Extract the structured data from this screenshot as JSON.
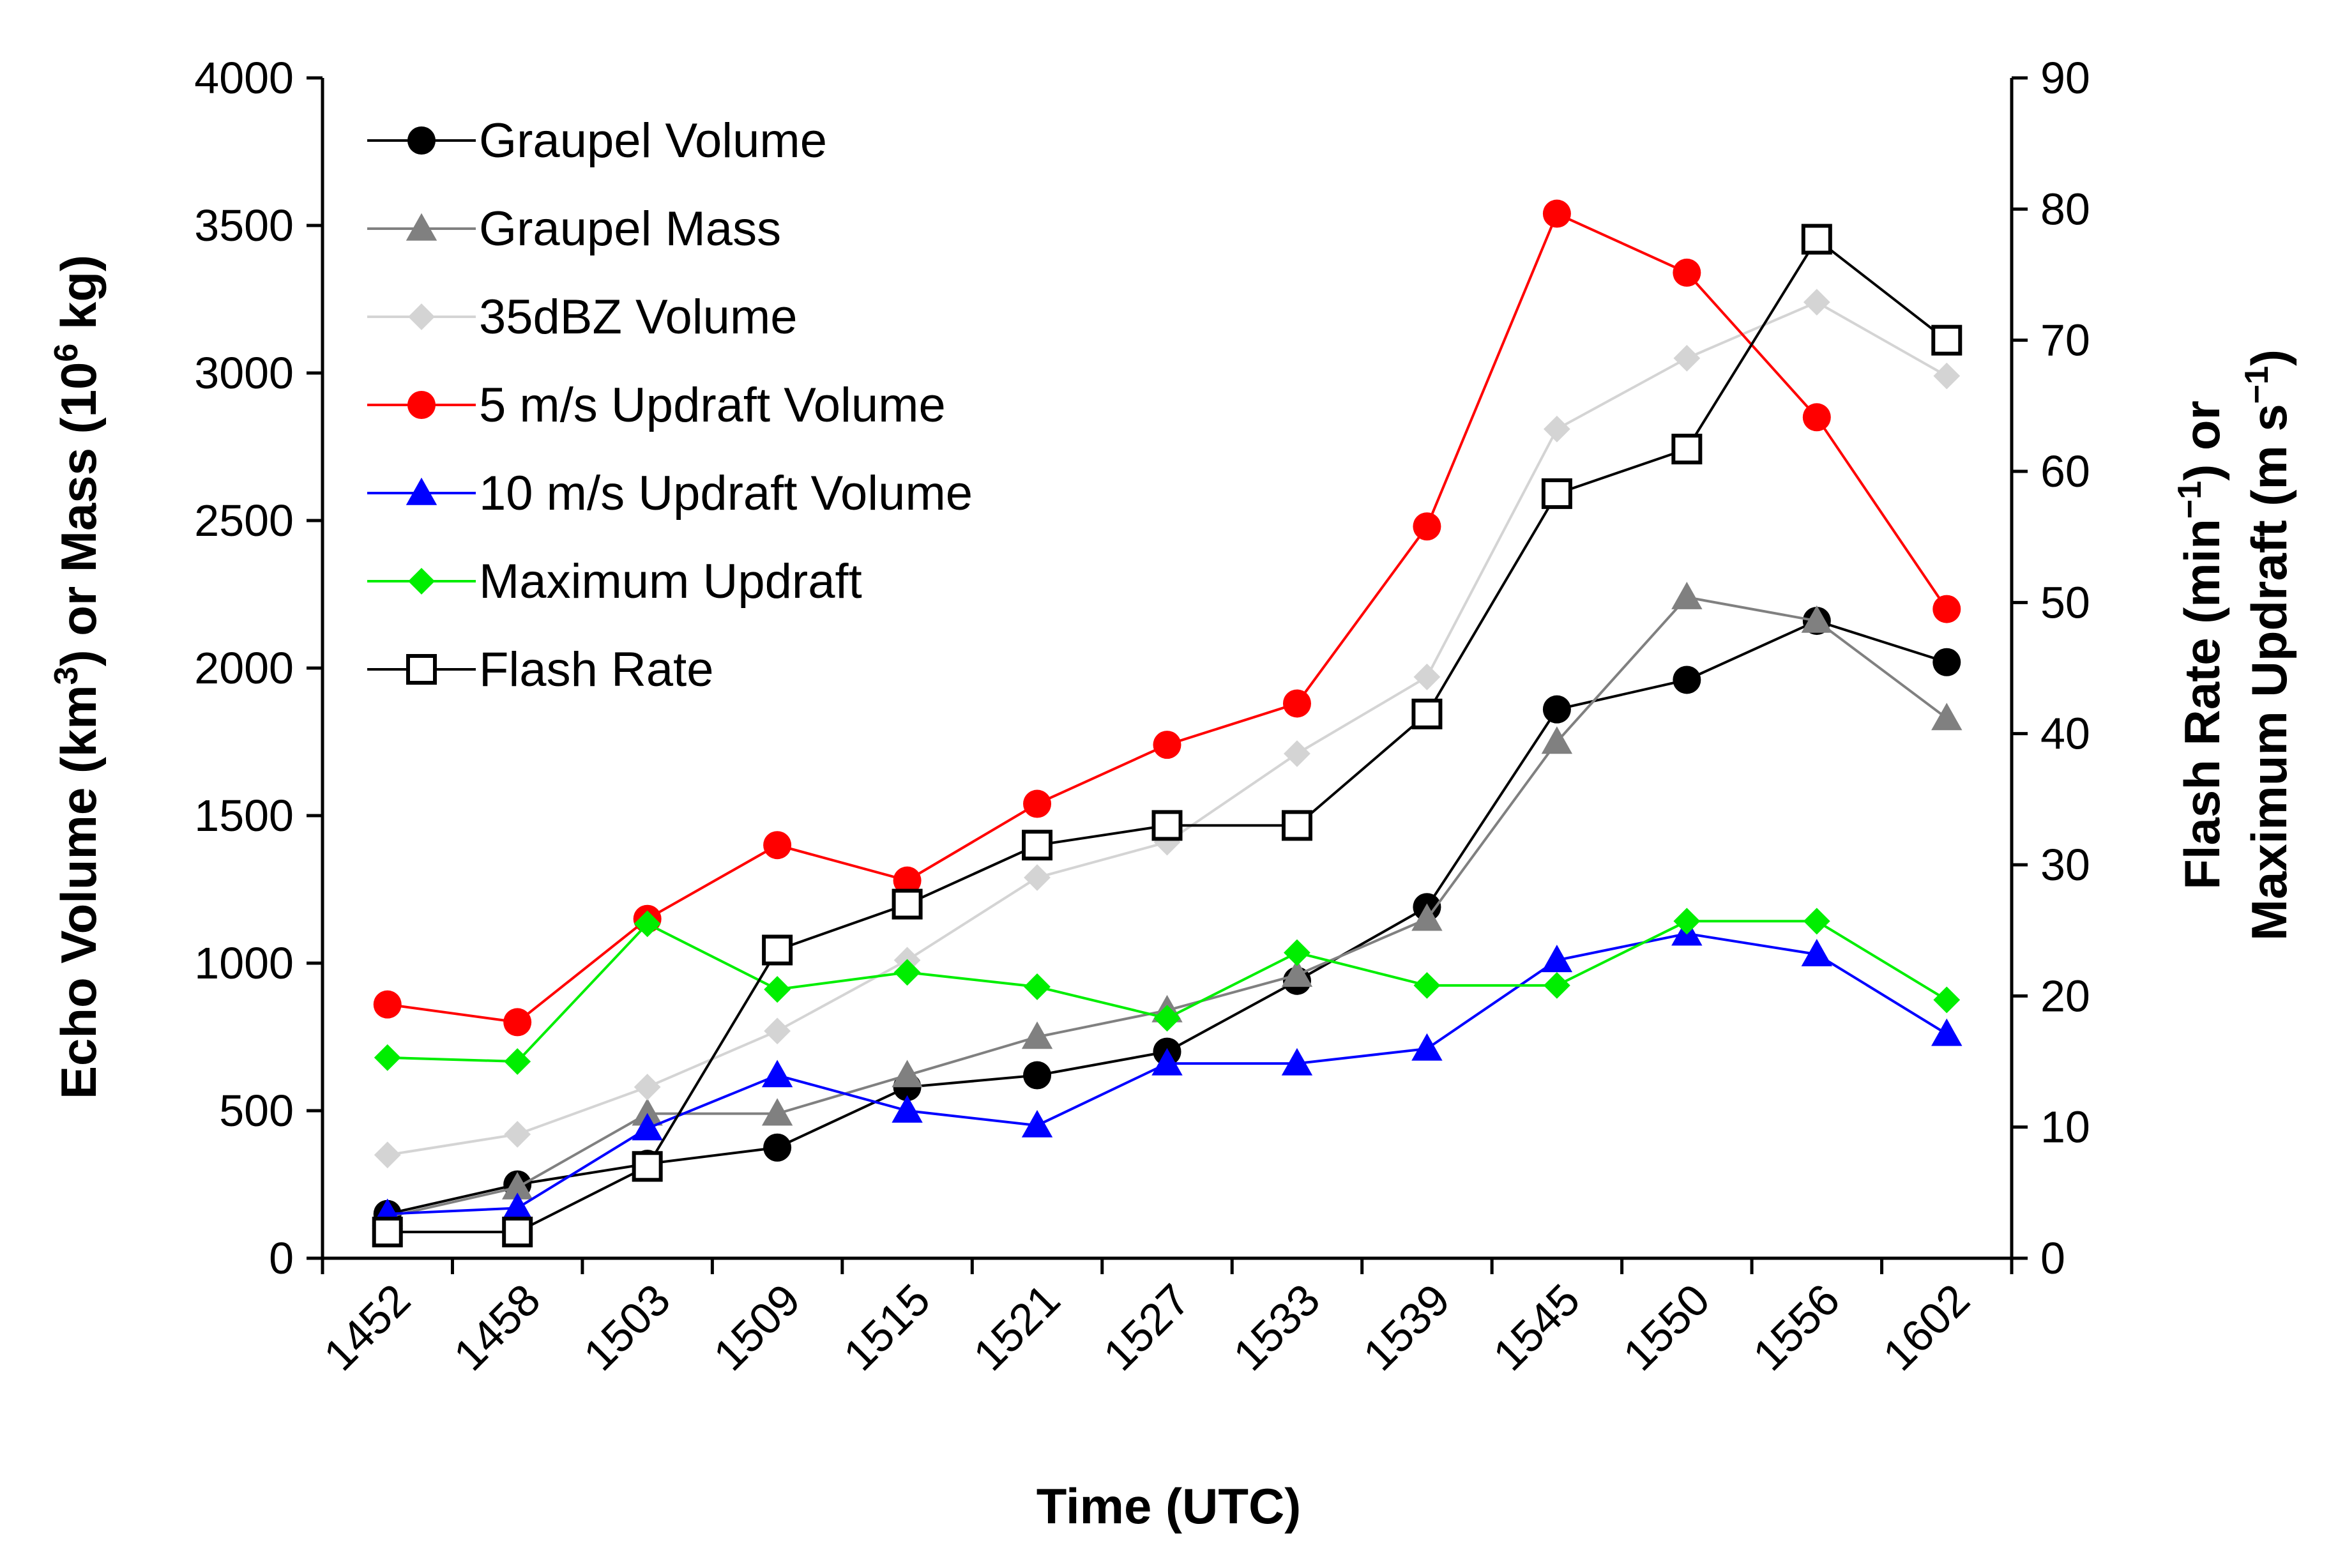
{
  "chart_data": {
    "type": "line",
    "xlabel": "Time (UTC)",
    "ylabel_left": {
      "parts": [
        "Echo Volume (km",
        "3",
        ") or Mass (10",
        "6",
        " kg)"
      ]
    },
    "ylabel_right": {
      "line1": [
        "Flash Rate (min",
        "−1",
        ") or"
      ],
      "line2": [
        "Maximum Updraft (m s",
        "−1",
        ")"
      ]
    },
    "categories": [
      "1452",
      "1458",
      "1503",
      "1509",
      "1515",
      "1521",
      "1527",
      "1533",
      "1539",
      "1545",
      "1550",
      "1556",
      "1602"
    ],
    "ylim_left": [
      0,
      4000
    ],
    "ylim_right": [
      0,
      90
    ],
    "yticks_left": [
      0,
      500,
      1000,
      1500,
      2000,
      2500,
      3000,
      3500,
      4000
    ],
    "yticks_right": [
      0,
      10,
      20,
      30,
      40,
      50,
      60,
      70,
      80,
      90
    ],
    "series": [
      {
        "name": "Graupel Volume",
        "axis": "left",
        "color": "#000000",
        "marker": "circle",
        "values": [
          150,
          250,
          320,
          375,
          580,
          620,
          700,
          940,
          1190,
          1860,
          1960,
          2160,
          2020
        ]
      },
      {
        "name": "Graupel Mass",
        "axis": "left",
        "color": "#808080",
        "marker": "triangle",
        "values": [
          140,
          240,
          490,
          490,
          620,
          750,
          840,
          960,
          1150,
          1750,
          2240,
          2160,
          1830
        ]
      },
      {
        "name": "35dBZ Volume",
        "axis": "left",
        "color": "#d4d4d4",
        "marker": "diamond",
        "values": [
          350,
          420,
          580,
          770,
          1010,
          1290,
          1410,
          1710,
          1970,
          2810,
          3050,
          3240,
          2990
        ]
      },
      {
        "name": "5 m/s Updraft Volume",
        "axis": "left",
        "color": "#ff0000",
        "marker": "circle",
        "values": [
          860,
          800,
          1150,
          1400,
          1280,
          1540,
          1740,
          1880,
          2480,
          3540,
          3340,
          2850,
          2200
        ]
      },
      {
        "name": "10 m/s Updraft Volume",
        "axis": "left",
        "color": "#0000ff",
        "marker": "triangle",
        "values": [
          150,
          170,
          440,
          620,
          500,
          450,
          660,
          660,
          710,
          1010,
          1100,
          1030,
          760
        ]
      },
      {
        "name": "Maximum Updraft",
        "axis": "right",
        "color": "#00ee00",
        "marker": "diamond",
        "values": [
          15.3,
          15.0,
          25.5,
          20.5,
          21.8,
          20.7,
          18.3,
          23.3,
          20.8,
          20.8,
          25.7,
          25.7,
          19.7
        ]
      },
      {
        "name": "Flash Rate",
        "axis": "right",
        "color": "#000000",
        "marker": "square",
        "values": [
          2.0,
          2.0,
          7.0,
          23.5,
          27.0,
          31.5,
          33.0,
          33.0,
          41.5,
          58.3,
          61.7,
          77.7,
          70.0
        ]
      }
    ]
  }
}
